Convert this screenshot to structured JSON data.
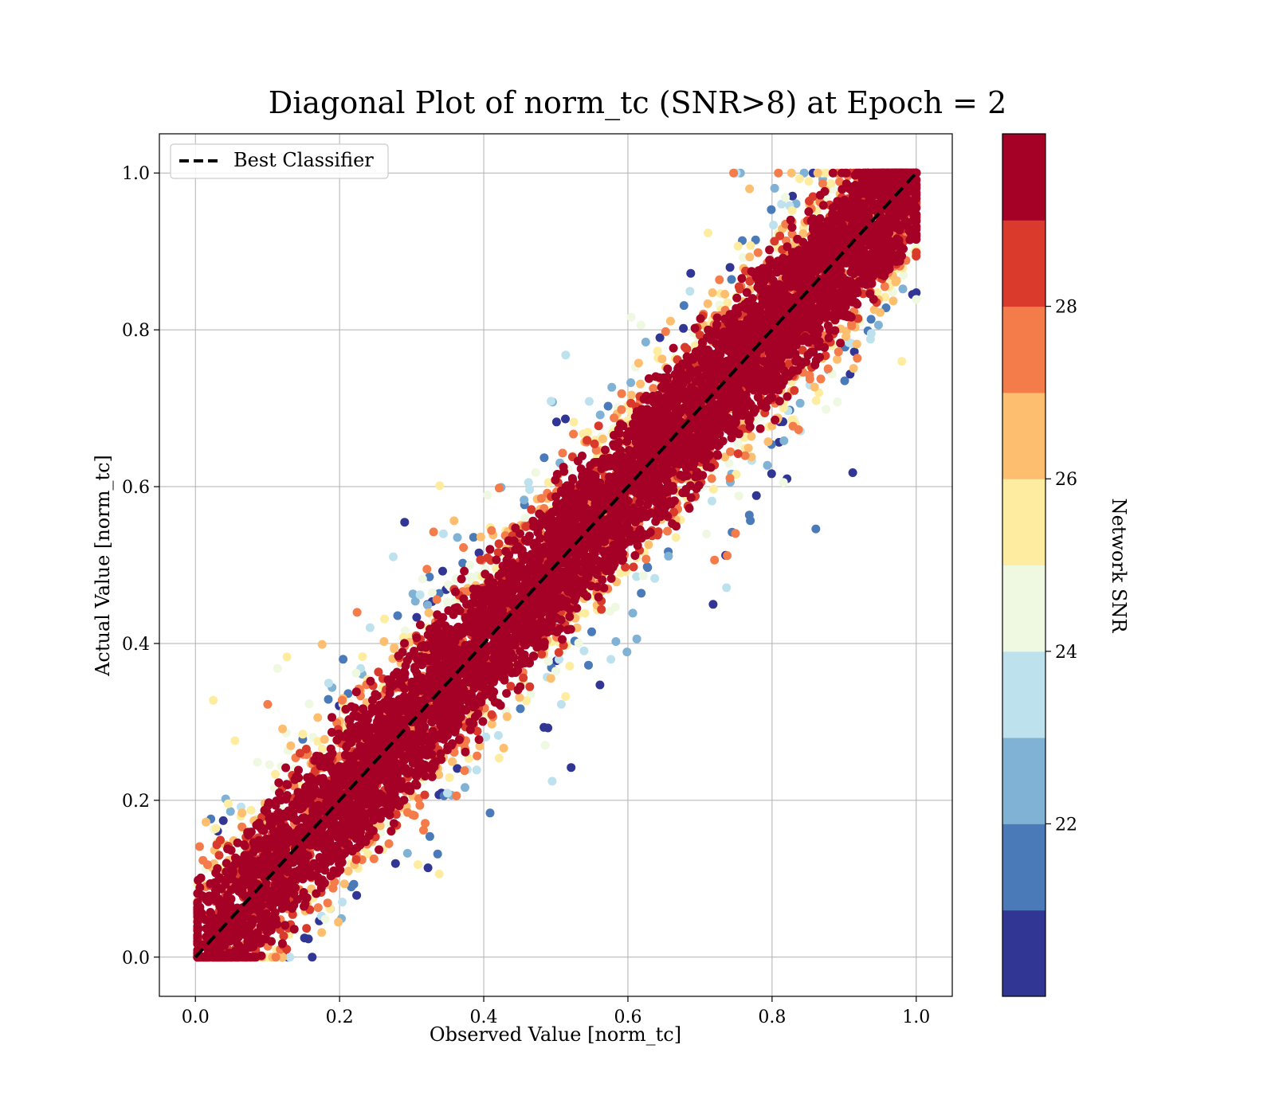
{
  "chart_data": {
    "type": "scatter",
    "title": "Diagonal Plot of norm_tc (SNR>8) at Epoch = 2",
    "xlabel": "Observed Value [norm_tc]",
    "ylabel": "Actual Value [norm_tc]",
    "xlim": [
      -0.05,
      1.05
    ],
    "ylim": [
      -0.05,
      1.05
    ],
    "xticks": [
      "0.0",
      "0.2",
      "0.4",
      "0.6",
      "0.8",
      "1.0"
    ],
    "yticks": [
      "0.0",
      "0.2",
      "0.4",
      "0.6",
      "0.8",
      "1.0"
    ],
    "grid": true,
    "legend": {
      "placement": "top-left",
      "entries": [
        {
          "label": "Best Classifier",
          "style": "dashed",
          "color": "#000000"
        }
      ]
    },
    "reference_line": {
      "name": "Best Classifier",
      "x": [
        0,
        1
      ],
      "y": [
        0,
        1
      ],
      "style": "dashed",
      "color": "#000000"
    },
    "scatter_description": {
      "count_estimate": 9000,
      "x_range": [
        0,
        1
      ],
      "y_range": [
        0,
        1
      ],
      "tendency": "points cluster tightly along y = x, with a band of spread about ±0.15 and sparse outliers up to ±0.35"
    },
    "colorbar": {
      "label": "Network SNR",
      "range": [
        20,
        30
      ],
      "ticks": [
        "22",
        "24",
        "26",
        "28"
      ],
      "tick_values": [
        22,
        24,
        26,
        28
      ],
      "bins": [
        {
          "from": 20,
          "to": 21,
          "color": "#313695"
        },
        {
          "from": 21,
          "to": 22,
          "color": "#4a7ab7"
        },
        {
          "from": 22,
          "to": 23,
          "color": "#7fb2d5"
        },
        {
          "from": 23,
          "to": 24,
          "color": "#bde2ee"
        },
        {
          "from": 24,
          "to": 25,
          "color": "#eff8e1"
        },
        {
          "from": 25,
          "to": 26,
          "color": "#feeda1"
        },
        {
          "from": 26,
          "to": 27,
          "color": "#fdbf6f"
        },
        {
          "from": 27,
          "to": 28,
          "color": "#f47b4a"
        },
        {
          "from": 28,
          "to": 29,
          "color": "#d93a2b"
        },
        {
          "from": 29,
          "to": 30,
          "color": "#a50026"
        }
      ]
    }
  }
}
